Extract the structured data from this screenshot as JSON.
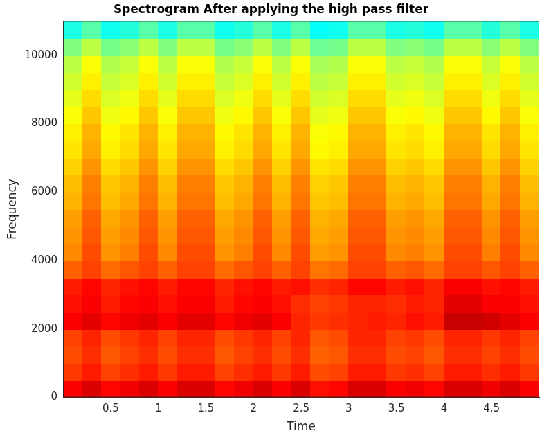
{
  "chart_data": {
    "type": "heatmap",
    "title": "Spectrogram After applying the high pass filter",
    "xlabel": "Time",
    "ylabel": "Frequency",
    "xlim": [
      0,
      5
    ],
    "ylim": [
      0,
      11000
    ],
    "xticks": [
      0.5,
      1,
      1.5,
      2,
      2.5,
      3,
      3.5,
      4,
      4.5
    ],
    "yticks": [
      0,
      2000,
      4000,
      6000,
      8000,
      10000
    ],
    "grid": false,
    "zlim": [
      0,
      100
    ],
    "x": [
      0.1,
      0.3,
      0.5,
      0.7,
      0.9,
      1.1,
      1.3,
      1.5,
      1.7,
      1.9,
      2.1,
      2.3,
      2.5,
      2.7,
      2.9,
      3.1,
      3.3,
      3.5,
      3.7,
      3.9,
      4.1,
      4.3,
      4.5,
      4.7,
      4.9
    ],
    "y": [
      250,
      750,
      1250,
      1750,
      2250,
      2750,
      3250,
      3750,
      4250,
      4750,
      5250,
      5750,
      6250,
      6750,
      7250,
      7750,
      8250,
      8750,
      9250,
      9750,
      10250,
      10750
    ],
    "z": [
      [
        88,
        91,
        87,
        89,
        91,
        88,
        91,
        91,
        87,
        89,
        91,
        88,
        91,
        86,
        87,
        91,
        91,
        88,
        89,
        87,
        91,
        91,
        89,
        91,
        88
      ],
      [
        82,
        85,
        81,
        83,
        85,
        82,
        85,
        85,
        81,
        83,
        85,
        82,
        85,
        80,
        81,
        85,
        85,
        82,
        83,
        81,
        85,
        85,
        83,
        85,
        82
      ],
      [
        80,
        83,
        79,
        81,
        83,
        80,
        83,
        83,
        79,
        81,
        83,
        80,
        83,
        78,
        79,
        83,
        83,
        80,
        81,
        79,
        83,
        83,
        81,
        83,
        80
      ],
      [
        81,
        84,
        80,
        82,
        84,
        81,
        84,
        84,
        80,
        82,
        84,
        81,
        84,
        79,
        80,
        84,
        84,
        81,
        82,
        80,
        84,
        84,
        82,
        84,
        81
      ],
      [
        88,
        90,
        87,
        89,
        90,
        88,
        90,
        90,
        87,
        89,
        90,
        88,
        84,
        82,
        83,
        84,
        85,
        84,
        86,
        85,
        93,
        93,
        92,
        90,
        88
      ],
      [
        86,
        88,
        85,
        87,
        88,
        86,
        88,
        88,
        85,
        87,
        88,
        86,
        83,
        81,
        82,
        84,
        84,
        83,
        85,
        84,
        90,
        90,
        88,
        88,
        86
      ],
      [
        85,
        87,
        84,
        86,
        87,
        85,
        87,
        87,
        84,
        86,
        87,
        85,
        86,
        83,
        84,
        87,
        87,
        85,
        86,
        84,
        88,
        88,
        86,
        87,
        85
      ],
      [
        78,
        81,
        77,
        79,
        81,
        78,
        81,
        81,
        77,
        79,
        81,
        78,
        81,
        76,
        77,
        81,
        81,
        78,
        79,
        77,
        81,
        81,
        79,
        81,
        78
      ],
      [
        74,
        80,
        73,
        75,
        80,
        74,
        80,
        80,
        73,
        75,
        80,
        74,
        80,
        72,
        73,
        80,
        80,
        74,
        75,
        73,
        80,
        80,
        75,
        80,
        74
      ],
      [
        73,
        79,
        72,
        74,
        79,
        73,
        79,
        79,
        72,
        74,
        79,
        73,
        79,
        71,
        72,
        79,
        79,
        73,
        74,
        72,
        79,
        79,
        74,
        79,
        73
      ],
      [
        72,
        78,
        71,
        73,
        78,
        72,
        78,
        78,
        71,
        73,
        78,
        72,
        78,
        70,
        71,
        78,
        78,
        72,
        73,
        71,
        78,
        78,
        73,
        78,
        72
      ],
      [
        70,
        76,
        69,
        71,
        76,
        70,
        76,
        76,
        69,
        71,
        76,
        70,
        76,
        68,
        69,
        76,
        76,
        70,
        71,
        69,
        76,
        76,
        71,
        76,
        70
      ],
      [
        69,
        75,
        68,
        70,
        75,
        69,
        75,
        75,
        68,
        70,
        75,
        69,
        75,
        67,
        68,
        75,
        75,
        69,
        70,
        68,
        75,
        75,
        70,
        75,
        69
      ],
      [
        67,
        73,
        66,
        68,
        73,
        67,
        73,
        73,
        66,
        68,
        73,
        67,
        73,
        65,
        66,
        73,
        73,
        67,
        68,
        66,
        73,
        73,
        68,
        73,
        67
      ],
      [
        65,
        71,
        64,
        66,
        71,
        65,
        71,
        71,
        64,
        66,
        71,
        65,
        71,
        63,
        64,
        71,
        71,
        65,
        66,
        64,
        71,
        71,
        66,
        71,
        65
      ],
      [
        64,
        70,
        63,
        65,
        70,
        64,
        70,
        70,
        63,
        65,
        70,
        64,
        70,
        62,
        63,
        70,
        70,
        64,
        65,
        63,
        70,
        70,
        65,
        70,
        64
      ],
      [
        62,
        68,
        61,
        63,
        68,
        62,
        68,
        68,
        61,
        63,
        68,
        62,
        68,
        60,
        61,
        68,
        68,
        62,
        63,
        61,
        68,
        68,
        63,
        68,
        62
      ],
      [
        60,
        66,
        59,
        61,
        66,
        60,
        66,
        66,
        59,
        61,
        66,
        60,
        66,
        58,
        59,
        66,
        66,
        60,
        61,
        59,
        66,
        66,
        61,
        66,
        60
      ],
      [
        58,
        64,
        57,
        59,
        64,
        58,
        64,
        64,
        57,
        59,
        64,
        58,
        64,
        56,
        57,
        64,
        64,
        58,
        59,
        57,
        64,
        64,
        59,
        64,
        58
      ],
      [
        56,
        62,
        55,
        57,
        62,
        56,
        62,
        62,
        55,
        57,
        62,
        56,
        62,
        54,
        55,
        62,
        62,
        56,
        57,
        55,
        62,
        62,
        57,
        62,
        56
      ],
      [
        50,
        56,
        49,
        51,
        56,
        50,
        56,
        56,
        49,
        51,
        56,
        50,
        56,
        48,
        49,
        56,
        56,
        50,
        51,
        49,
        56,
        56,
        51,
        56,
        50
      ],
      [
        40,
        46,
        39,
        41,
        46,
        40,
        46,
        46,
        39,
        41,
        46,
        40,
        46,
        38,
        39,
        46,
        46,
        40,
        41,
        39,
        46,
        46,
        41,
        46,
        40
      ]
    ]
  }
}
